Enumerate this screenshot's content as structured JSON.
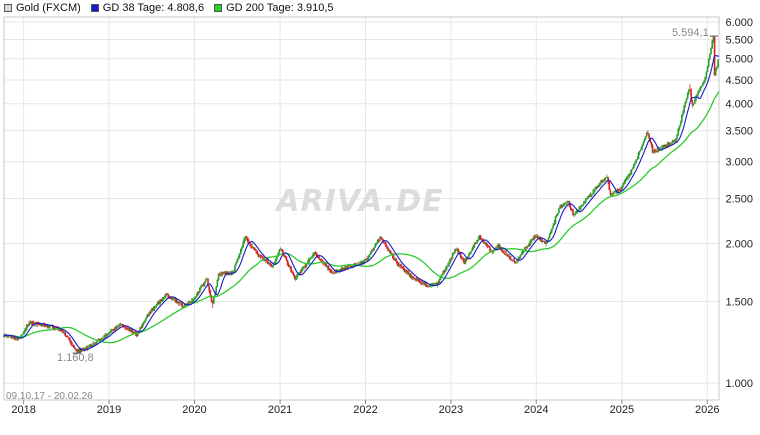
{
  "legend": [
    {
      "label": "Gold (FXCM)",
      "color": "#d9d9d9"
    },
    {
      "label": "GD 38 Tage: 4.808,6",
      "color": "#1a1ac8"
    },
    {
      "label": "GD 200 Tage: 3.910,5",
      "color": "#2ecc2e"
    }
  ],
  "watermark": "ARIVA.DE",
  "date_range": "09.10.17 - 20.02.26",
  "annotations": {
    "high": "5.594,1",
    "low": "1.160,8"
  },
  "colors": {
    "up": "#2a9d2a",
    "down": "#d62020",
    "gd38": "#1a1ac8",
    "gd200": "#2ecc2e",
    "grid": "#e6e6e6",
    "watermark": "#dcdcdc"
  },
  "chart_data": {
    "type": "candlestick",
    "y_scale": "log",
    "ylim": [
      920,
      6150
    ],
    "xlim": [
      "2017-10-09",
      "2026-02-20"
    ],
    "x_tick_labels": [
      {
        "date": "2018-01-01",
        "label": "2018"
      },
      {
        "date": "2019-01-01",
        "label": "2019"
      },
      {
        "date": "2020-01-01",
        "label": "2020"
      },
      {
        "date": "2021-01-01",
        "label": "2021"
      },
      {
        "date": "2022-01-01",
        "label": "2022"
      },
      {
        "date": "2023-01-01",
        "label": "2023"
      },
      {
        "date": "2024-01-01",
        "label": "2024"
      },
      {
        "date": "2025-01-01",
        "label": "2025"
      },
      {
        "date": "2026-01-01",
        "label": "2026"
      }
    ],
    "y_tick_labels": [
      {
        "value": 1000,
        "label": "1.000"
      },
      {
        "value": 1500,
        "label": "1.500"
      },
      {
        "value": 2000,
        "label": "2.000"
      },
      {
        "value": 2500,
        "label": "2.500"
      },
      {
        "value": 3000,
        "label": "3.000"
      },
      {
        "value": 3500,
        "label": "3.500"
      },
      {
        "value": 4000,
        "label": "4.000"
      },
      {
        "value": 4500,
        "label": "4.500"
      },
      {
        "value": 5000,
        "label": "5.000"
      },
      {
        "value": 5500,
        "label": "5.500"
      },
      {
        "value": 6000,
        "label": "6.000"
      }
    ],
    "price_path": [
      [
        "2017-10-09",
        1270
      ],
      [
        "2017-12-15",
        1245
      ],
      [
        "2018-01-25",
        1350
      ],
      [
        "2018-04-15",
        1330
      ],
      [
        "2018-06-15",
        1300
      ],
      [
        "2018-08-16",
        1172
      ],
      [
        "2018-09-30",
        1190
      ],
      [
        "2018-12-31",
        1280
      ],
      [
        "2019-02-20",
        1340
      ],
      [
        "2019-05-01",
        1275
      ],
      [
        "2019-06-25",
        1420
      ],
      [
        "2019-09-04",
        1550
      ],
      [
        "2019-11-15",
        1465
      ],
      [
        "2019-12-31",
        1520
      ],
      [
        "2020-02-24",
        1680
      ],
      [
        "2020-03-19",
        1470
      ],
      [
        "2020-04-15",
        1720
      ],
      [
        "2020-06-15",
        1730
      ],
      [
        "2020-08-06",
        2060
      ],
      [
        "2020-09-30",
        1890
      ],
      [
        "2020-11-30",
        1780
      ],
      [
        "2021-01-05",
        1950
      ],
      [
        "2021-03-08",
        1680
      ],
      [
        "2021-05-31",
        1910
      ],
      [
        "2021-08-09",
        1730
      ],
      [
        "2021-12-31",
        1830
      ],
      [
        "2022-03-08",
        2060
      ],
      [
        "2022-05-15",
        1820
      ],
      [
        "2022-07-21",
        1690
      ],
      [
        "2022-09-28",
        1620
      ],
      [
        "2022-11-03",
        1630
      ],
      [
        "2023-01-25",
        1950
      ],
      [
        "2023-02-28",
        1820
      ],
      [
        "2023-05-04",
        2070
      ],
      [
        "2023-06-29",
        1910
      ],
      [
        "2023-07-20",
        1980
      ],
      [
        "2023-10-05",
        1820
      ],
      [
        "2023-12-28",
        2080
      ],
      [
        "2024-02-14",
        1990
      ],
      [
        "2024-04-12",
        2400
      ],
      [
        "2024-05-20",
        2450
      ],
      [
        "2024-06-10",
        2300
      ],
      [
        "2024-09-26",
        2680
      ],
      [
        "2024-10-31",
        2790
      ],
      [
        "2024-11-14",
        2540
      ],
      [
        "2024-12-31",
        2625
      ],
      [
        "2025-02-24",
        2950
      ],
      [
        "2025-04-22",
        3480
      ],
      [
        "2025-05-15",
        3150
      ],
      [
        "2025-08-20",
        3330
      ],
      [
        "2025-10-20",
        4380
      ],
      [
        "2025-10-28",
        3950
      ],
      [
        "2025-12-26",
        4550
      ],
      [
        "2026-01-29",
        5594
      ],
      [
        "2026-02-03",
        4600
      ],
      [
        "2026-02-20",
        5000
      ]
    ],
    "series": [
      {
        "name": "GD 38 Tage",
        "last_value": 4808.6
      },
      {
        "name": "GD 200 Tage",
        "last_value": 3910.5
      }
    ],
    "high": {
      "date": "2026-01-29",
      "value": 5594.1
    },
    "low": {
      "date": "2018-08-16",
      "value": 1160.8
    }
  }
}
